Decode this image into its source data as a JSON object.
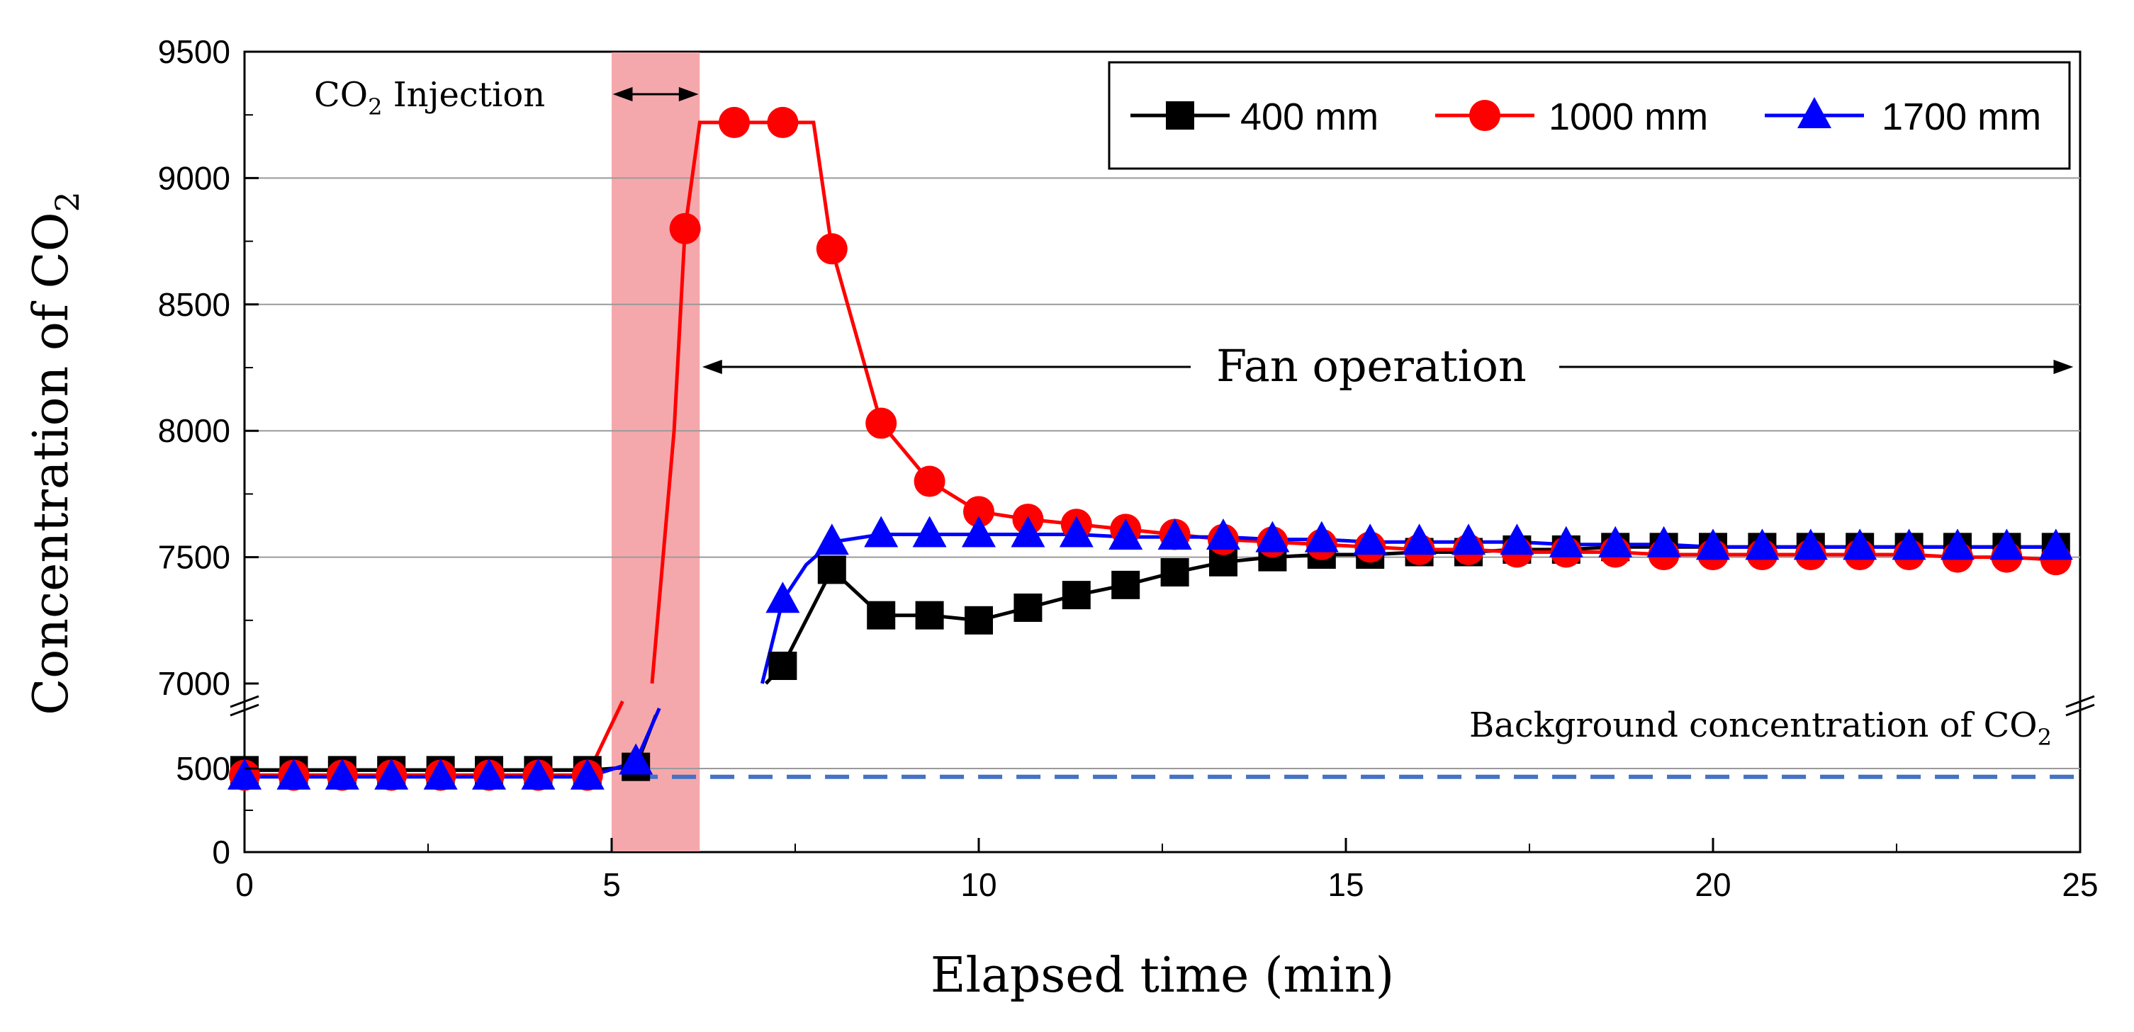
{
  "chart_data": {
    "type": "line",
    "title": "",
    "xlabel": "Elapsed time (min)",
    "ylabel": {
      "main": "Concentration of CO",
      "sub": "2"
    },
    "xlim": [
      0,
      25
    ],
    "x_ticks": [
      "0",
      "5",
      "10",
      "15",
      "20",
      "25"
    ],
    "y_broken_axis": {
      "lower": [
        0,
        600
      ],
      "upper": [
        7000,
        9500
      ]
    },
    "y_ticks": [
      "0",
      "500",
      "7000",
      "7500",
      "8000",
      "8500",
      "9000",
      "9500"
    ],
    "colors": {
      "s400": "#000000",
      "s1000": "#ff0000",
      "s1700": "#0000ff",
      "background": "#4472c4",
      "injection": "#f4a3a8"
    },
    "series": [
      {
        "name": "400 mm",
        "x": [
          0,
          0.67,
          1.33,
          2.0,
          2.67,
          3.33,
          4.0,
          4.67,
          5.33,
          7.33,
          8.0,
          8.67,
          9.33,
          10.0,
          10.67,
          11.33,
          12.0,
          12.67,
          13.33,
          14.0,
          14.67,
          15.33,
          16.0,
          16.67,
          17.33,
          18.0,
          18.67,
          19.33,
          20.0,
          20.67,
          21.33,
          22.0,
          22.67,
          23.33,
          24.0,
          24.67
        ],
        "values": [
          490,
          490,
          490,
          490,
          490,
          490,
          490,
          490,
          510,
          7070,
          7450,
          7270,
          7270,
          7250,
          7300,
          7350,
          7390,
          7440,
          7480,
          7500,
          7510,
          7510,
          7520,
          7520,
          7530,
          7530,
          7540,
          7540,
          7540,
          7540,
          7540,
          7540,
          7540,
          7540,
          7540,
          7540
        ]
      },
      {
        "name": "1000 mm",
        "x": [
          0,
          0.67,
          1.33,
          2.0,
          2.67,
          3.33,
          4.0,
          4.67,
          6.0,
          6.67,
          7.33,
          8.0,
          8.67,
          9.33,
          10.0,
          10.67,
          11.33,
          12.0,
          12.67,
          13.33,
          14.0,
          14.67,
          15.33,
          16.0,
          16.67,
          17.33,
          18.0,
          18.67,
          19.33,
          20.0,
          20.67,
          21.33,
          22.0,
          22.67,
          23.33,
          24.0,
          24.67
        ],
        "values": [
          460,
          460,
          460,
          460,
          460,
          460,
          460,
          460,
          8800,
          9220,
          9220,
          8720,
          8030,
          7800,
          7680,
          7650,
          7630,
          7610,
          7590,
          7570,
          7560,
          7550,
          7540,
          7530,
          7530,
          7520,
          7520,
          7520,
          7510,
          7510,
          7510,
          7510,
          7510,
          7510,
          7500,
          7500,
          7490
        ]
      },
      {
        "name": "1700 mm",
        "x": [
          0,
          0.67,
          1.33,
          2.0,
          2.67,
          3.33,
          4.0,
          4.67,
          5.33,
          7.33,
          8.0,
          8.67,
          9.33,
          10.0,
          10.67,
          11.33,
          12.0,
          12.67,
          13.33,
          14.0,
          14.67,
          15.33,
          16.0,
          16.67,
          17.33,
          18.0,
          18.67,
          19.33,
          20.0,
          20.67,
          21.33,
          22.0,
          22.67,
          23.33,
          24.0,
          24.67
        ],
        "values": [
          450,
          450,
          450,
          450,
          450,
          450,
          450,
          450,
          540,
          7330,
          7560,
          7590,
          7590,
          7590,
          7590,
          7590,
          7580,
          7580,
          7580,
          7570,
          7570,
          7560,
          7560,
          7560,
          7560,
          7550,
          7550,
          7550,
          7540,
          7540,
          7540,
          7540,
          7540,
          7540,
          7540,
          7540
        ]
      }
    ],
    "reference_line": {
      "label": "Background concentration of CO",
      "label_sub": "2",
      "value": 450,
      "style": "dashed"
    },
    "annotations": [
      {
        "text": "CO",
        "sub": "2",
        "text2": " Injection",
        "x_range": [
          5.0,
          6.2
        ]
      },
      {
        "text": "Fan operation",
        "x_range": [
          6.2,
          25.0
        ]
      }
    ],
    "legend": {
      "position": "top-right",
      "entries": [
        "400 mm",
        "1000 mm",
        "1700 mm"
      ]
    }
  }
}
